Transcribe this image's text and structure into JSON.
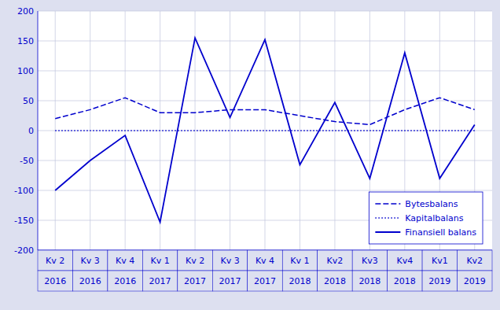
{
  "chart_data": {
    "type": "line",
    "categories": [
      [
        "Kv 2",
        "2016"
      ],
      [
        "Kv 3",
        "2016"
      ],
      [
        "Kv 4",
        "2016"
      ],
      [
        "Kv 1",
        "2017"
      ],
      [
        "Kv 2",
        "2017"
      ],
      [
        "Kv 3",
        "2017"
      ],
      [
        "Kv 4",
        "2017"
      ],
      [
        "Kv 1",
        "2018"
      ],
      [
        "Kv2",
        "2018"
      ],
      [
        "Kv3",
        "2018"
      ],
      [
        "Kv4",
        "2018"
      ],
      [
        "Kv1",
        "2019"
      ],
      [
        "Kv2",
        "2019"
      ]
    ],
    "series": [
      {
        "name": "Bytesbalans",
        "color": "#0000CD",
        "line_style": "dashed",
        "values": [
          20,
          35,
          55,
          30,
          30,
          35,
          35,
          25,
          15,
          10,
          35,
          55,
          35
        ]
      },
      {
        "name": "Kapitalbalans",
        "color": "#0000CD",
        "line_style": "dotted",
        "values": [
          0,
          0,
          0,
          0,
          0,
          0,
          0,
          0,
          0,
          0,
          0,
          0,
          0
        ]
      },
      {
        "name": "Finansiell balans",
        "color": "#0000CD",
        "line_style": "solid",
        "values": [
          -100,
          -50,
          -8,
          -153,
          155,
          22,
          152,
          -57,
          47,
          -80,
          130,
          -80,
          10
        ]
      }
    ],
    "ylim": [
      -200,
      200
    ],
    "yticks": [
      -200,
      -150,
      -100,
      -50,
      0,
      50,
      100,
      150,
      200
    ],
    "grid": true,
    "legend": "lower right"
  }
}
